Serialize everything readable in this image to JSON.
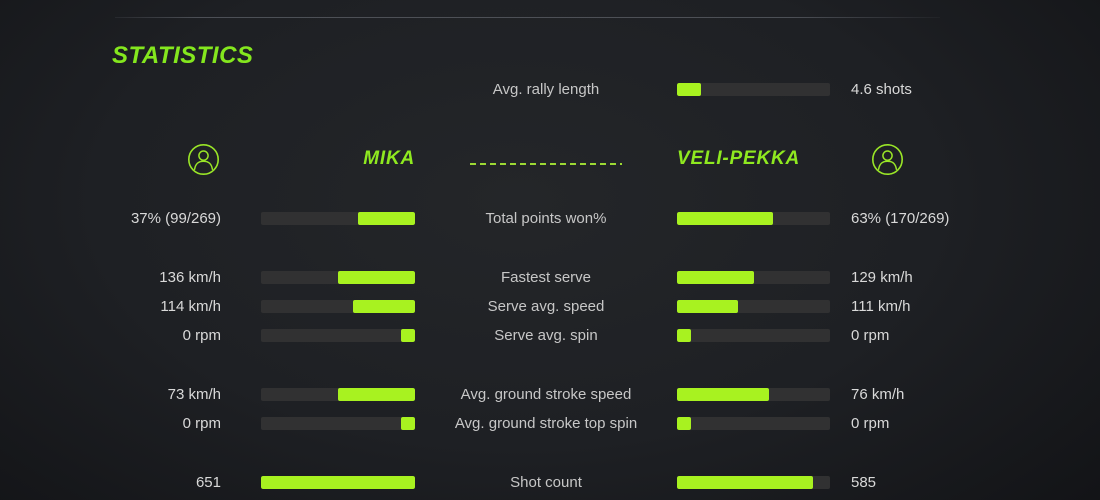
{
  "title": "STATISTICS",
  "colors": {
    "accent_text": "#84e71e",
    "bar_fill": "#a8f220",
    "bar_track": "#313132",
    "value_text": "#d9d9d9",
    "label_text": "#c7c7c7"
  },
  "icons": {
    "left_player": "person-icon",
    "right_player": "person-icon"
  },
  "rally": {
    "label": "Avg. rally length",
    "value": "4.6 shots",
    "fill": 0.16
  },
  "header": {
    "left_name": "MIKA",
    "right_name": "VELI-PEKKA"
  },
  "groups": [
    {
      "rows": [
        {
          "label": "Total points won%",
          "left": {
            "value": "37% (99/269)",
            "fill": 0.37
          },
          "right": {
            "value": "63% (170/269)",
            "fill": 0.63
          }
        }
      ]
    },
    {
      "rows": [
        {
          "label": "Fastest serve",
          "left": {
            "value": "136 km/h",
            "fill": 0.5
          },
          "right": {
            "value": "129 km/h",
            "fill": 0.5
          }
        },
        {
          "label": "Serve avg. speed",
          "left": {
            "value": "114 km/h",
            "fill": 0.4
          },
          "right": {
            "value": "111 km/h",
            "fill": 0.4
          }
        },
        {
          "label": "Serve avg. spin",
          "left": {
            "value": "0 rpm",
            "fill": 0.09
          },
          "right": {
            "value": "0 rpm",
            "fill": 0.09
          }
        }
      ]
    },
    {
      "rows": [
        {
          "label": "Avg. ground stroke speed",
          "left": {
            "value": "73 km/h",
            "fill": 0.5
          },
          "right": {
            "value": "76 km/h",
            "fill": 0.6
          }
        },
        {
          "label": "Avg. ground stroke top spin",
          "left": {
            "value": "0 rpm",
            "fill": 0.09
          },
          "right": {
            "value": "0 rpm",
            "fill": 0.09
          }
        }
      ]
    },
    {
      "rows": [
        {
          "label": "Shot count",
          "left": {
            "value": "651",
            "fill": 1.0
          },
          "right": {
            "value": "585",
            "fill": 0.89
          }
        }
      ]
    }
  ]
}
